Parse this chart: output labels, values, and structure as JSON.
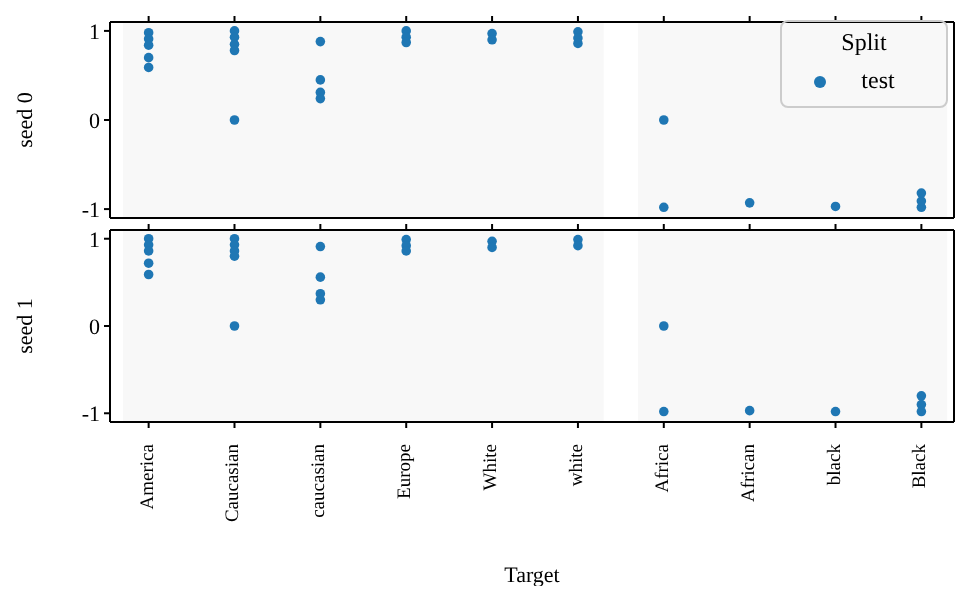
{
  "chart_data": [
    {
      "type": "scatter",
      "ylabel": "seed 0",
      "categories": [
        "America",
        "Caucasian",
        "caucasian",
        "Europe",
        "White",
        "white",
        "Africa",
        "African",
        "black",
        "Black"
      ],
      "ylim": [
        -1.1,
        1.1
      ],
      "yticks": [
        -1,
        0,
        1
      ],
      "tick_labels": "y",
      "legend": "top right",
      "legend_title": "Split",
      "marker": "circle",
      "bands": [
        {
          "axis": "x",
          "from": "America",
          "to": "white",
          "color": "#f8f8f8"
        },
        {
          "axis": "x",
          "from": "Africa",
          "to": "Black",
          "color": "#f8f8f8"
        }
      ],
      "series": [
        {
          "name": "test",
          "color": "#1f77b4",
          "x": [
            "America",
            "America",
            "America",
            "America",
            "America",
            "Caucasian",
            "Caucasian",
            "Caucasian",
            "Caucasian",
            "Caucasian",
            "caucasian",
            "caucasian",
            "caucasian",
            "caucasian",
            "Europe",
            "Europe",
            "Europe",
            "White",
            "White",
            "white",
            "white",
            "white",
            "Africa",
            "Africa",
            "African",
            "black",
            "Black",
            "Black",
            "Black"
          ],
          "values": [
            0.98,
            0.91,
            0.84,
            0.7,
            0.59,
            1,
            0.93,
            0.85,
            0.78,
            0,
            0.88,
            0.45,
            0.31,
            0.24,
            1,
            0.93,
            0.87,
            0.97,
            0.9,
            0.99,
            0.92,
            0.86,
            0,
            -0.98,
            -0.93,
            -0.97,
            -0.98,
            -0.91,
            -0.82
          ]
        }
      ]
    },
    {
      "type": "scatter",
      "ylabel": "seed 1",
      "xlabel": "Target",
      "categories": [
        "America",
        "Caucasian",
        "caucasian",
        "Europe",
        "White",
        "white",
        "Africa",
        "African",
        "black",
        "Black"
      ],
      "ylim": [
        -1.1,
        1.1
      ],
      "yticks": [
        -1,
        0,
        1
      ],
      "marker": "circle",
      "bands": [
        {
          "axis": "x",
          "from": "America",
          "to": "white",
          "color": "#f8f8f8"
        },
        {
          "axis": "x",
          "from": "Africa",
          "to": "Black",
          "color": "#f8f8f8"
        }
      ],
      "series": [
        {
          "color": "#1f77b4",
          "x": [
            "America",
            "America",
            "America",
            "America",
            "America",
            "Caucasian",
            "Caucasian",
            "Caucasian",
            "Caucasian",
            "Caucasian",
            "caucasian",
            "caucasian",
            "caucasian",
            "caucasian",
            "Europe",
            "Europe",
            "Europe",
            "White",
            "White",
            "white",
            "white",
            "Africa",
            "Africa",
            "African",
            "black",
            "Black",
            "Black",
            "Black"
          ],
          "values": [
            1,
            0.93,
            0.86,
            0.72,
            0.59,
            1,
            0.93,
            0.86,
            0.8,
            0,
            0.91,
            0.56,
            0.37,
            0.3,
            0.99,
            0.92,
            0.86,
            0.97,
            0.9,
            0.99,
            0.92,
            0,
            -0.98,
            -0.97,
            -0.98,
            -0.8,
            -0.9,
            -0.98
          ]
        }
      ]
    }
  ]
}
